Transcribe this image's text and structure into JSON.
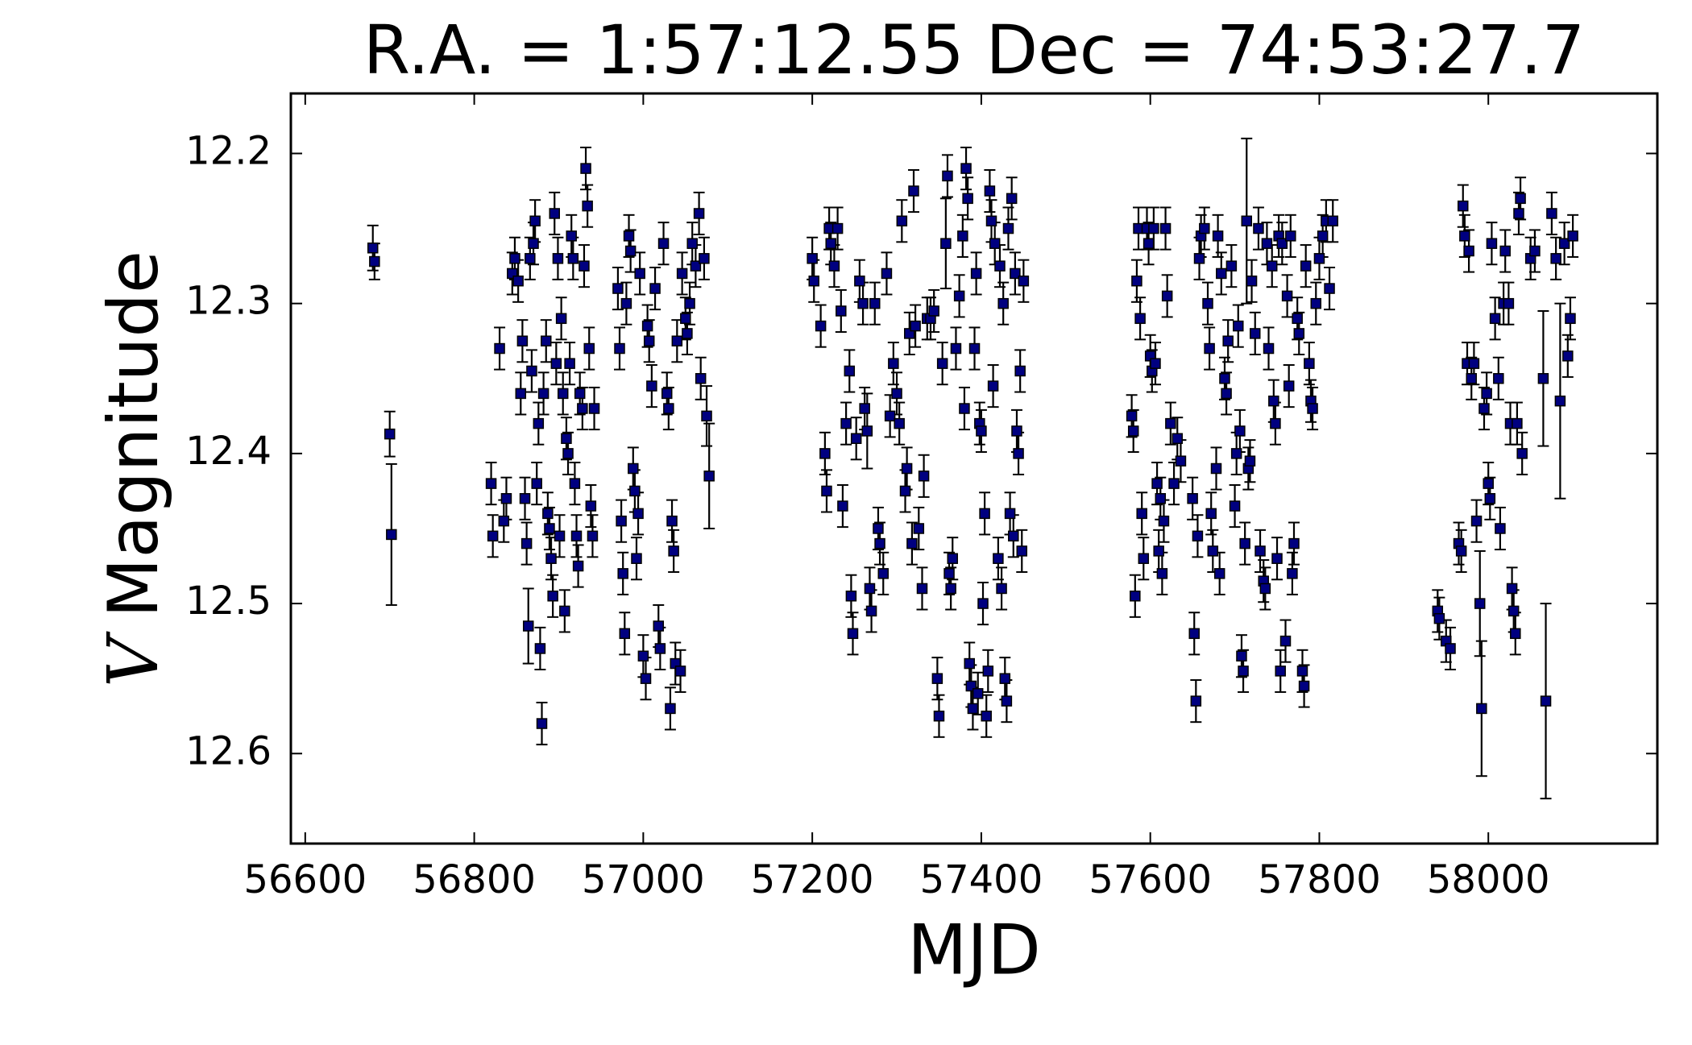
{
  "chart_data": {
    "type": "errorbar",
    "title": "R.A. = 1:57:12.55   Dec = 74:53:27.7",
    "xlabel": "MJD",
    "ylabel_variable": "V",
    "ylabel": "Magnitude",
    "xlim": [
      56583,
      58200
    ],
    "ylim": [
      12.16,
      12.66
    ],
    "y_inverted": true,
    "xticks": [
      56600,
      56800,
      57000,
      57200,
      57400,
      57600,
      57800,
      58000
    ],
    "yticks": [
      12.2,
      12.3,
      12.4,
      12.5,
      12.6
    ],
    "color": "#000080",
    "edge_color": "#000000",
    "error_color": "#000000",
    "x": [
      56680,
      56682,
      56700,
      56702,
      56820,
      56822,
      56830,
      56835,
      56838,
      56845,
      56848,
      56852,
      56855,
      56857,
      56860,
      56862,
      56864,
      56866,
      56868,
      56870,
      56872,
      56874,
      56876,
      56878,
      56880,
      56882,
      56885,
      56887,
      56889,
      56891,
      56893,
      56895,
      56897,
      56899,
      56901,
      56903,
      56905,
      56907,
      56909,
      56911,
      56913,
      56915,
      56917,
      56919,
      56921,
      56923,
      56925,
      56928,
      56930,
      56932,
      56934,
      56936,
      56938,
      56940,
      56942,
      56970,
      56972,
      56974,
      56976,
      56978,
      56980,
      56983,
      56985,
      56988,
      56990,
      56992,
      56994,
      56996,
      57000,
      57003,
      57005,
      57007,
      57010,
      57014,
      57018,
      57020,
      57024,
      57028,
      57030,
      57032,
      57034,
      57036,
      57038,
      57040,
      57044,
      57046,
      57050,
      57052,
      57055,
      57058,
      57062,
      57066,
      57068,
      57072,
      57075,
      57078,
      57200,
      57202,
      57210,
      57215,
      57217,
      57220,
      57222,
      57226,
      57230,
      57234,
      57236,
      57240,
      57244,
      57246,
      57248,
      57252,
      57256,
      57260,
      57262,
      57265,
      57268,
      57270,
      57274,
      57278,
      57280,
      57284,
      57288,
      57292,
      57296,
      57300,
      57303,
      57306,
      57310,
      57312,
      57315,
      57318,
      57320,
      57322,
      57326,
      57330,
      57332,
      57336,
      57340,
      57344,
      57348,
      57350,
      57354,
      57358,
      57360,
      57362,
      57364,
      57366,
      57370,
      57374,
      57378,
      57380,
      57382,
      57384,
      57386,
      57388,
      57390,
      57392,
      57394,
      57396,
      57398,
      57400,
      57402,
      57404,
      57406,
      57408,
      57410,
      57412,
      57414,
      57416,
      57420,
      57422,
      57424,
      57426,
      57428,
      57430,
      57432,
      57434,
      57436,
      57438,
      57440,
      57442,
      57444,
      57446,
      57448,
      57450,
      57578,
      57580,
      57582,
      57584,
      57586,
      57588,
      57590,
      57592,
      57596,
      57598,
      57600,
      57602,
      57604,
      57606,
      57608,
      57610,
      57612,
      57614,
      57616,
      57618,
      57620,
      57624,
      57628,
      57632,
      57636,
      57650,
      57652,
      57654,
      57656,
      57658,
      57660,
      57664,
      57668,
      57670,
      57672,
      57674,
      57678,
      57680,
      57682,
      57684,
      57688,
      57690,
      57692,
      57696,
      57700,
      57702,
      57704,
      57706,
      57708,
      57710,
      57712,
      57714,
      57716,
      57718,
      57720,
      57724,
      57728,
      57730,
      57734,
      57736,
      57738,
      57740,
      57744,
      57746,
      57748,
      57750,
      57752,
      57754,
      57756,
      57760,
      57762,
      57764,
      57766,
      57768,
      57770,
      57774,
      57776,
      57780,
      57782,
      57784,
      57788,
      57790,
      57792,
      57796,
      57800,
      57804,
      57808,
      57812,
      57816,
      57940,
      57942,
      57950,
      57955,
      57965,
      57968,
      57970,
      57972,
      57975,
      57977,
      57980,
      57983,
      57986,
      57990,
      57992,
      57995,
      57998,
      58000,
      58002,
      58004,
      58008,
      58012,
      58014,
      58018,
      58020,
      58024,
      58026,
      58028,
      58030,
      58032,
      58034,
      58036,
      58038,
      58040,
      58050,
      58055,
      58065,
      58068,
      58075,
      58080,
      58085,
      58090,
      58094,
      58097,
      58100
    ],
    "values": [
      12.263,
      12.272,
      12.387,
      12.454,
      12.42,
      12.455,
      12.33,
      12.445,
      12.43,
      12.28,
      12.27,
      12.285,
      12.36,
      12.325,
      12.43,
      12.46,
      12.515,
      12.27,
      12.345,
      12.26,
      12.245,
      12.42,
      12.38,
      12.53,
      12.58,
      12.36,
      12.325,
      12.44,
      12.45,
      12.47,
      12.495,
      12.24,
      12.34,
      12.27,
      12.455,
      12.31,
      12.36,
      12.505,
      12.39,
      12.4,
      12.34,
      12.255,
      12.27,
      12.42,
      12.455,
      12.475,
      12.36,
      12.37,
      12.275,
      12.21,
      12.235,
      12.33,
      12.435,
      12.455,
      12.37,
      12.29,
      12.33,
      12.445,
      12.48,
      12.52,
      12.3,
      12.255,
      12.265,
      12.41,
      12.425,
      12.47,
      12.44,
      12.28,
      12.535,
      12.55,
      12.315,
      12.325,
      12.355,
      12.29,
      12.515,
      12.53,
      12.26,
      12.36,
      12.37,
      12.57,
      12.445,
      12.465,
      12.54,
      12.325,
      12.545,
      12.28,
      12.31,
      12.32,
      12.3,
      12.26,
      12.275,
      12.24,
      12.35,
      12.27,
      12.375,
      12.415,
      12.27,
      12.285,
      12.315,
      12.4,
      12.425,
      12.25,
      12.26,
      12.275,
      12.25,
      12.305,
      12.435,
      12.38,
      12.345,
      12.495,
      12.52,
      12.39,
      12.285,
      12.3,
      12.37,
      12.385,
      12.49,
      12.505,
      12.3,
      12.45,
      12.46,
      12.48,
      12.28,
      12.375,
      12.34,
      12.36,
      12.38,
      12.245,
      12.425,
      12.41,
      12.32,
      12.46,
      12.225,
      12.315,
      12.45,
      12.49,
      12.415,
      12.31,
      12.31,
      12.305,
      12.55,
      12.575,
      12.34,
      12.26,
      12.215,
      12.48,
      12.49,
      12.47,
      12.33,
      12.295,
      12.255,
      12.37,
      12.21,
      12.23,
      12.54,
      12.555,
      12.57,
      12.33,
      12.28,
      12.56,
      12.38,
      12.385,
      12.5,
      12.44,
      12.575,
      12.545,
      12.225,
      12.245,
      12.355,
      12.26,
      12.47,
      12.275,
      12.49,
      12.3,
      12.55,
      12.565,
      12.25,
      12.44,
      12.23,
      12.455,
      12.28,
      12.385,
      12.4,
      12.345,
      12.465,
      12.285,
      12.375,
      12.385,
      12.495,
      12.285,
      12.25,
      12.31,
      12.44,
      12.47,
      12.25,
      12.26,
      12.335,
      12.345,
      12.25,
      12.34,
      12.42,
      12.465,
      12.43,
      12.48,
      12.445,
      12.25,
      12.295,
      12.38,
      12.42,
      12.39,
      12.405,
      12.43,
      12.52,
      12.565,
      12.455,
      12.27,
      12.255,
      12.25,
      12.3,
      12.33,
      12.44,
      12.465,
      12.41,
      12.255,
      12.48,
      12.28,
      12.35,
      12.36,
      12.325,
      12.275,
      12.435,
      12.4,
      12.315,
      12.385,
      12.535,
      12.545,
      12.46,
      12.245,
      12.41,
      12.405,
      12.285,
      12.32,
      12.25,
      12.465,
      12.485,
      12.49,
      12.26,
      12.33,
      12.275,
      12.365,
      12.38,
      12.47,
      12.255,
      12.545,
      12.26,
      12.525,
      12.295,
      12.355,
      12.255,
      12.48,
      12.46,
      12.31,
      12.32,
      12.545,
      12.555,
      12.275,
      12.34,
      12.365,
      12.37,
      12.3,
      12.27,
      12.255,
      12.245,
      12.29,
      12.245,
      12.505,
      12.51,
      12.525,
      12.53,
      12.46,
      12.465,
      12.235,
      12.255,
      12.34,
      12.265,
      12.35,
      12.34,
      12.445,
      12.5,
      12.57,
      12.37,
      12.36,
      12.42,
      12.43,
      12.26,
      12.31,
      12.35,
      12.45,
      12.3,
      12.265,
      12.3,
      12.38,
      12.49,
      12.505,
      12.52,
      12.38,
      12.24,
      12.23,
      12.4,
      12.27,
      12.265,
      12.35,
      12.565,
      12.24,
      12.27,
      12.365,
      12.26,
      12.335,
      12.31,
      12.255
    ],
    "errors": [
      0.015,
      0.012,
      0.015,
      0.047,
      0.014,
      0.014,
      0.014,
      0.014,
      0.014,
      0.014,
      0.014,
      0.014,
      0.014,
      0.014,
      0.014,
      0.014,
      0.025,
      0.014,
      0.014,
      0.014,
      0.014,
      0.014,
      0.014,
      0.014,
      0.014,
      0.014,
      0.014,
      0.014,
      0.014,
      0.014,
      0.014,
      0.014,
      0.014,
      0.014,
      0.014,
      0.014,
      0.014,
      0.014,
      0.014,
      0.014,
      0.014,
      0.014,
      0.014,
      0.014,
      0.014,
      0.014,
      0.014,
      0.014,
      0.014,
      0.014,
      0.014,
      0.014,
      0.014,
      0.014,
      0.014,
      0.014,
      0.014,
      0.014,
      0.014,
      0.014,
      0.014,
      0.014,
      0.014,
      0.014,
      0.014,
      0.014,
      0.014,
      0.014,
      0.014,
      0.014,
      0.014,
      0.014,
      0.014,
      0.014,
      0.014,
      0.014,
      0.014,
      0.014,
      0.014,
      0.014,
      0.014,
      0.014,
      0.014,
      0.014,
      0.014,
      0.014,
      0.014,
      0.014,
      0.014,
      0.014,
      0.014,
      0.014,
      0.014,
      0.014,
      0.02,
      0.035,
      0.014,
      0.014,
      0.014,
      0.014,
      0.014,
      0.014,
      0.014,
      0.014,
      0.014,
      0.014,
      0.014,
      0.014,
      0.014,
      0.014,
      0.014,
      0.014,
      0.014,
      0.014,
      0.014,
      0.025,
      0.014,
      0.014,
      0.014,
      0.014,
      0.014,
      0.014,
      0.014,
      0.014,
      0.014,
      0.014,
      0.014,
      0.014,
      0.014,
      0.014,
      0.014,
      0.014,
      0.014,
      0.014,
      0.014,
      0.014,
      0.014,
      0.014,
      0.014,
      0.014,
      0.014,
      0.014,
      0.014,
      0.03,
      0.014,
      0.014,
      0.014,
      0.014,
      0.014,
      0.014,
      0.014,
      0.014,
      0.014,
      0.014,
      0.014,
      0.014,
      0.014,
      0.014,
      0.014,
      0.014,
      0.014,
      0.014,
      0.014,
      0.014,
      0.014,
      0.014,
      0.014,
      0.014,
      0.014,
      0.014,
      0.014,
      0.014,
      0.014,
      0.014,
      0.014,
      0.014,
      0.014,
      0.014,
      0.014,
      0.014,
      0.014,
      0.014,
      0.014,
      0.014,
      0.014,
      0.014,
      0.014,
      0.014,
      0.014,
      0.014,
      0.014,
      0.014,
      0.014,
      0.014,
      0.014,
      0.014,
      0.014,
      0.014,
      0.014,
      0.014,
      0.014,
      0.014,
      0.014,
      0.014,
      0.014,
      0.014,
      0.014,
      0.014,
      0.014,
      0.014,
      0.014,
      0.014,
      0.014,
      0.014,
      0.014,
      0.014,
      0.014,
      0.014,
      0.014,
      0.014,
      0.014,
      0.014,
      0.014,
      0.014,
      0.014,
      0.014,
      0.014,
      0.014,
      0.014,
      0.014,
      0.014,
      0.014,
      0.014,
      0.014,
      0.014,
      0.014,
      0.014,
      0.055,
      0.014,
      0.014,
      0.014,
      0.014,
      0.014,
      0.014,
      0.014,
      0.014,
      0.014,
      0.014,
      0.014,
      0.014,
      0.014,
      0.014,
      0.014,
      0.014,
      0.014,
      0.014,
      0.014,
      0.014,
      0.014,
      0.014,
      0.014,
      0.014,
      0.014,
      0.014,
      0.014,
      0.014,
      0.014,
      0.014,
      0.014,
      0.014,
      0.014,
      0.014,
      0.014,
      0.014,
      0.014,
      0.014,
      0.014,
      0.014,
      0.014,
      0.014,
      0.014,
      0.014,
      0.014,
      0.014,
      0.014,
      0.014,
      0.014,
      0.014,
      0.035,
      0.045,
      0.014,
      0.014,
      0.014,
      0.014,
      0.014,
      0.014,
      0.014,
      0.014,
      0.014,
      0.014,
      0.014,
      0.014,
      0.014,
      0.014,
      0.014,
      0.014,
      0.014,
      0.014,
      0.014,
      0.014,
      0.014,
      0.045,
      0.065,
      0.014,
      0.014,
      0.065,
      0.014,
      0.014,
      0.014,
      0.014
    ]
  }
}
